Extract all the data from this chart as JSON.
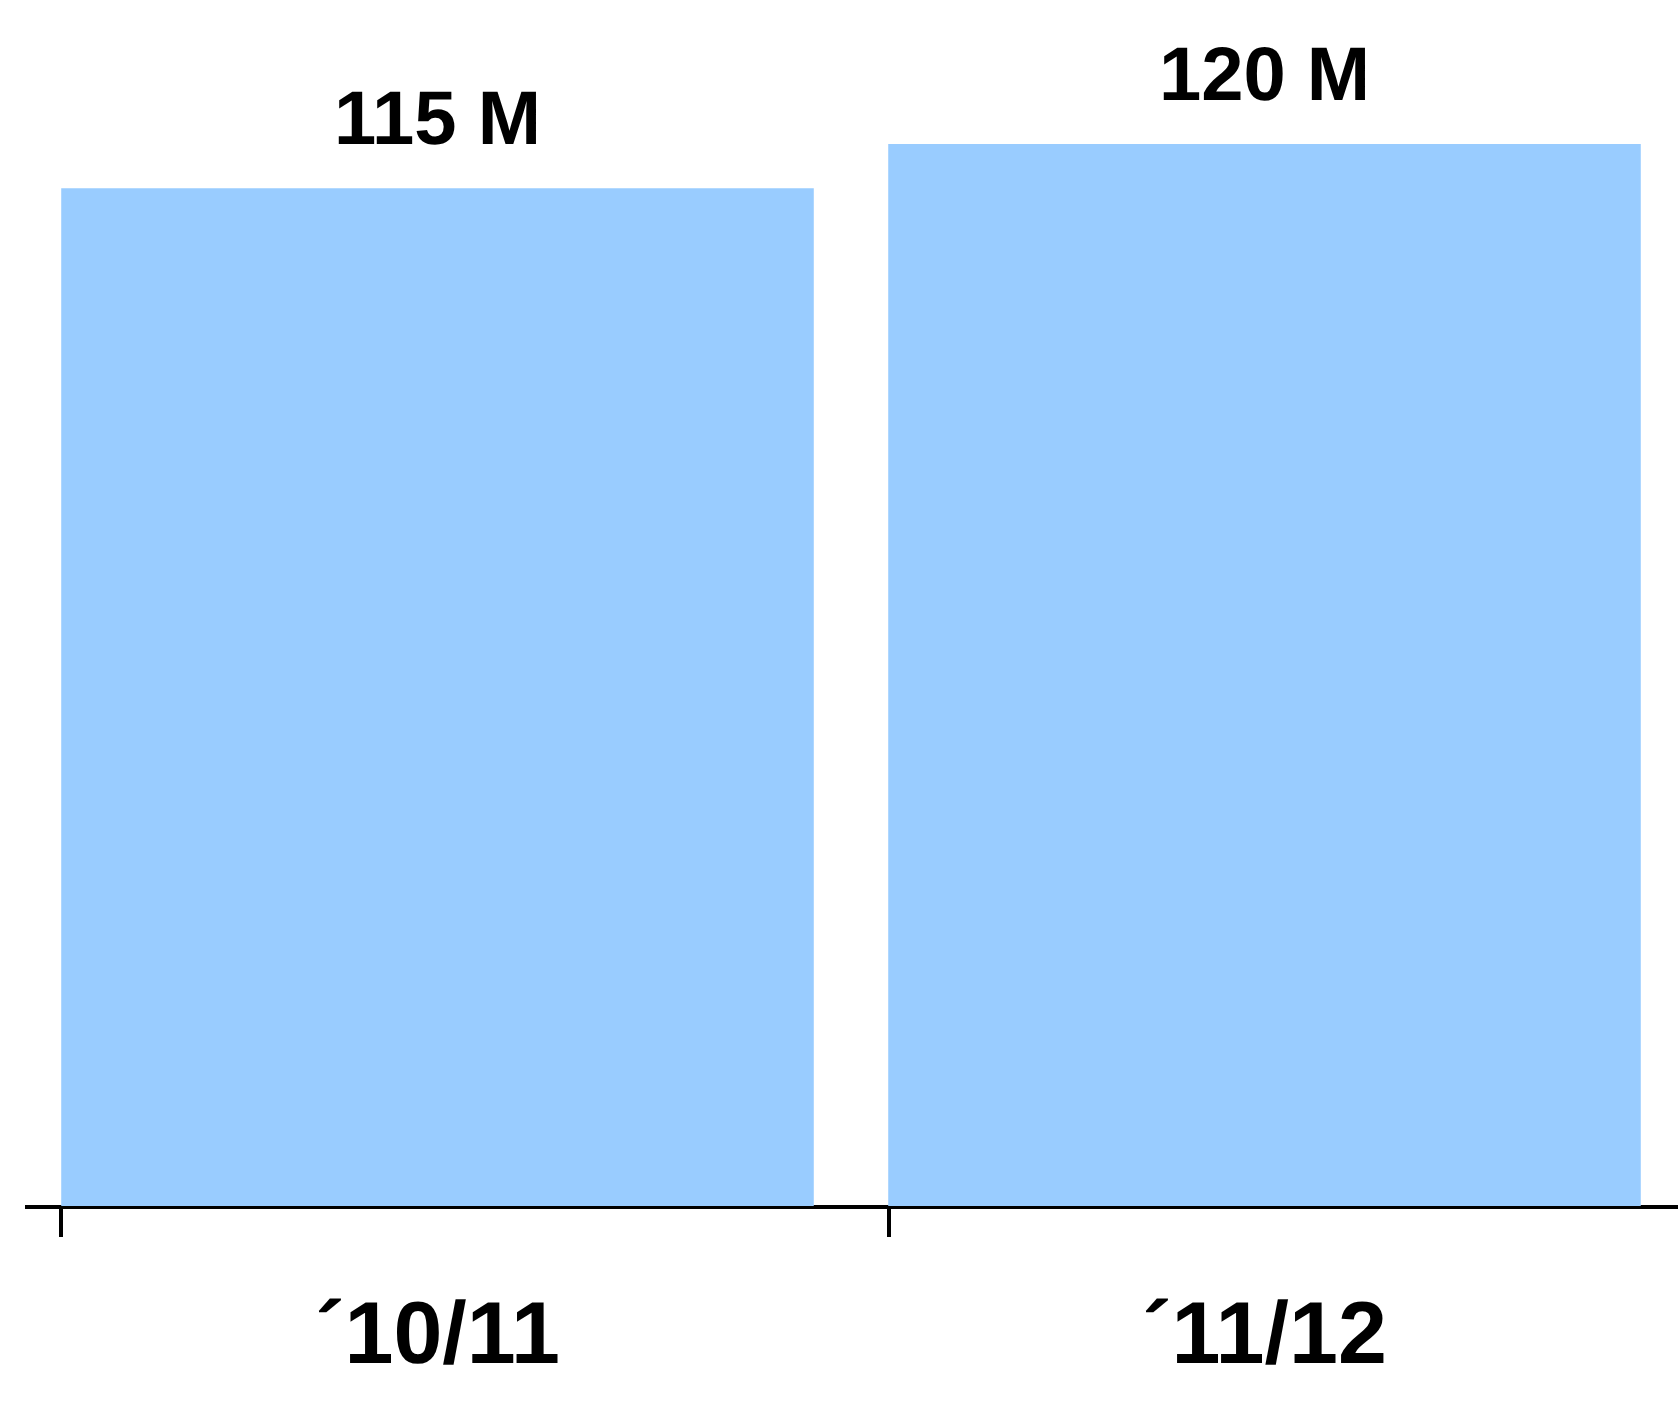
{
  "chart_data": {
    "type": "bar",
    "categories": [
      "´10/11",
      "´11/12"
    ],
    "series": [
      {
        "color": "#99ccff",
        "values": [
          115,
          120
        ],
        "value_labels": [
          "115 M",
          "120 M"
        ]
      }
    ],
    "grid": false
  }
}
